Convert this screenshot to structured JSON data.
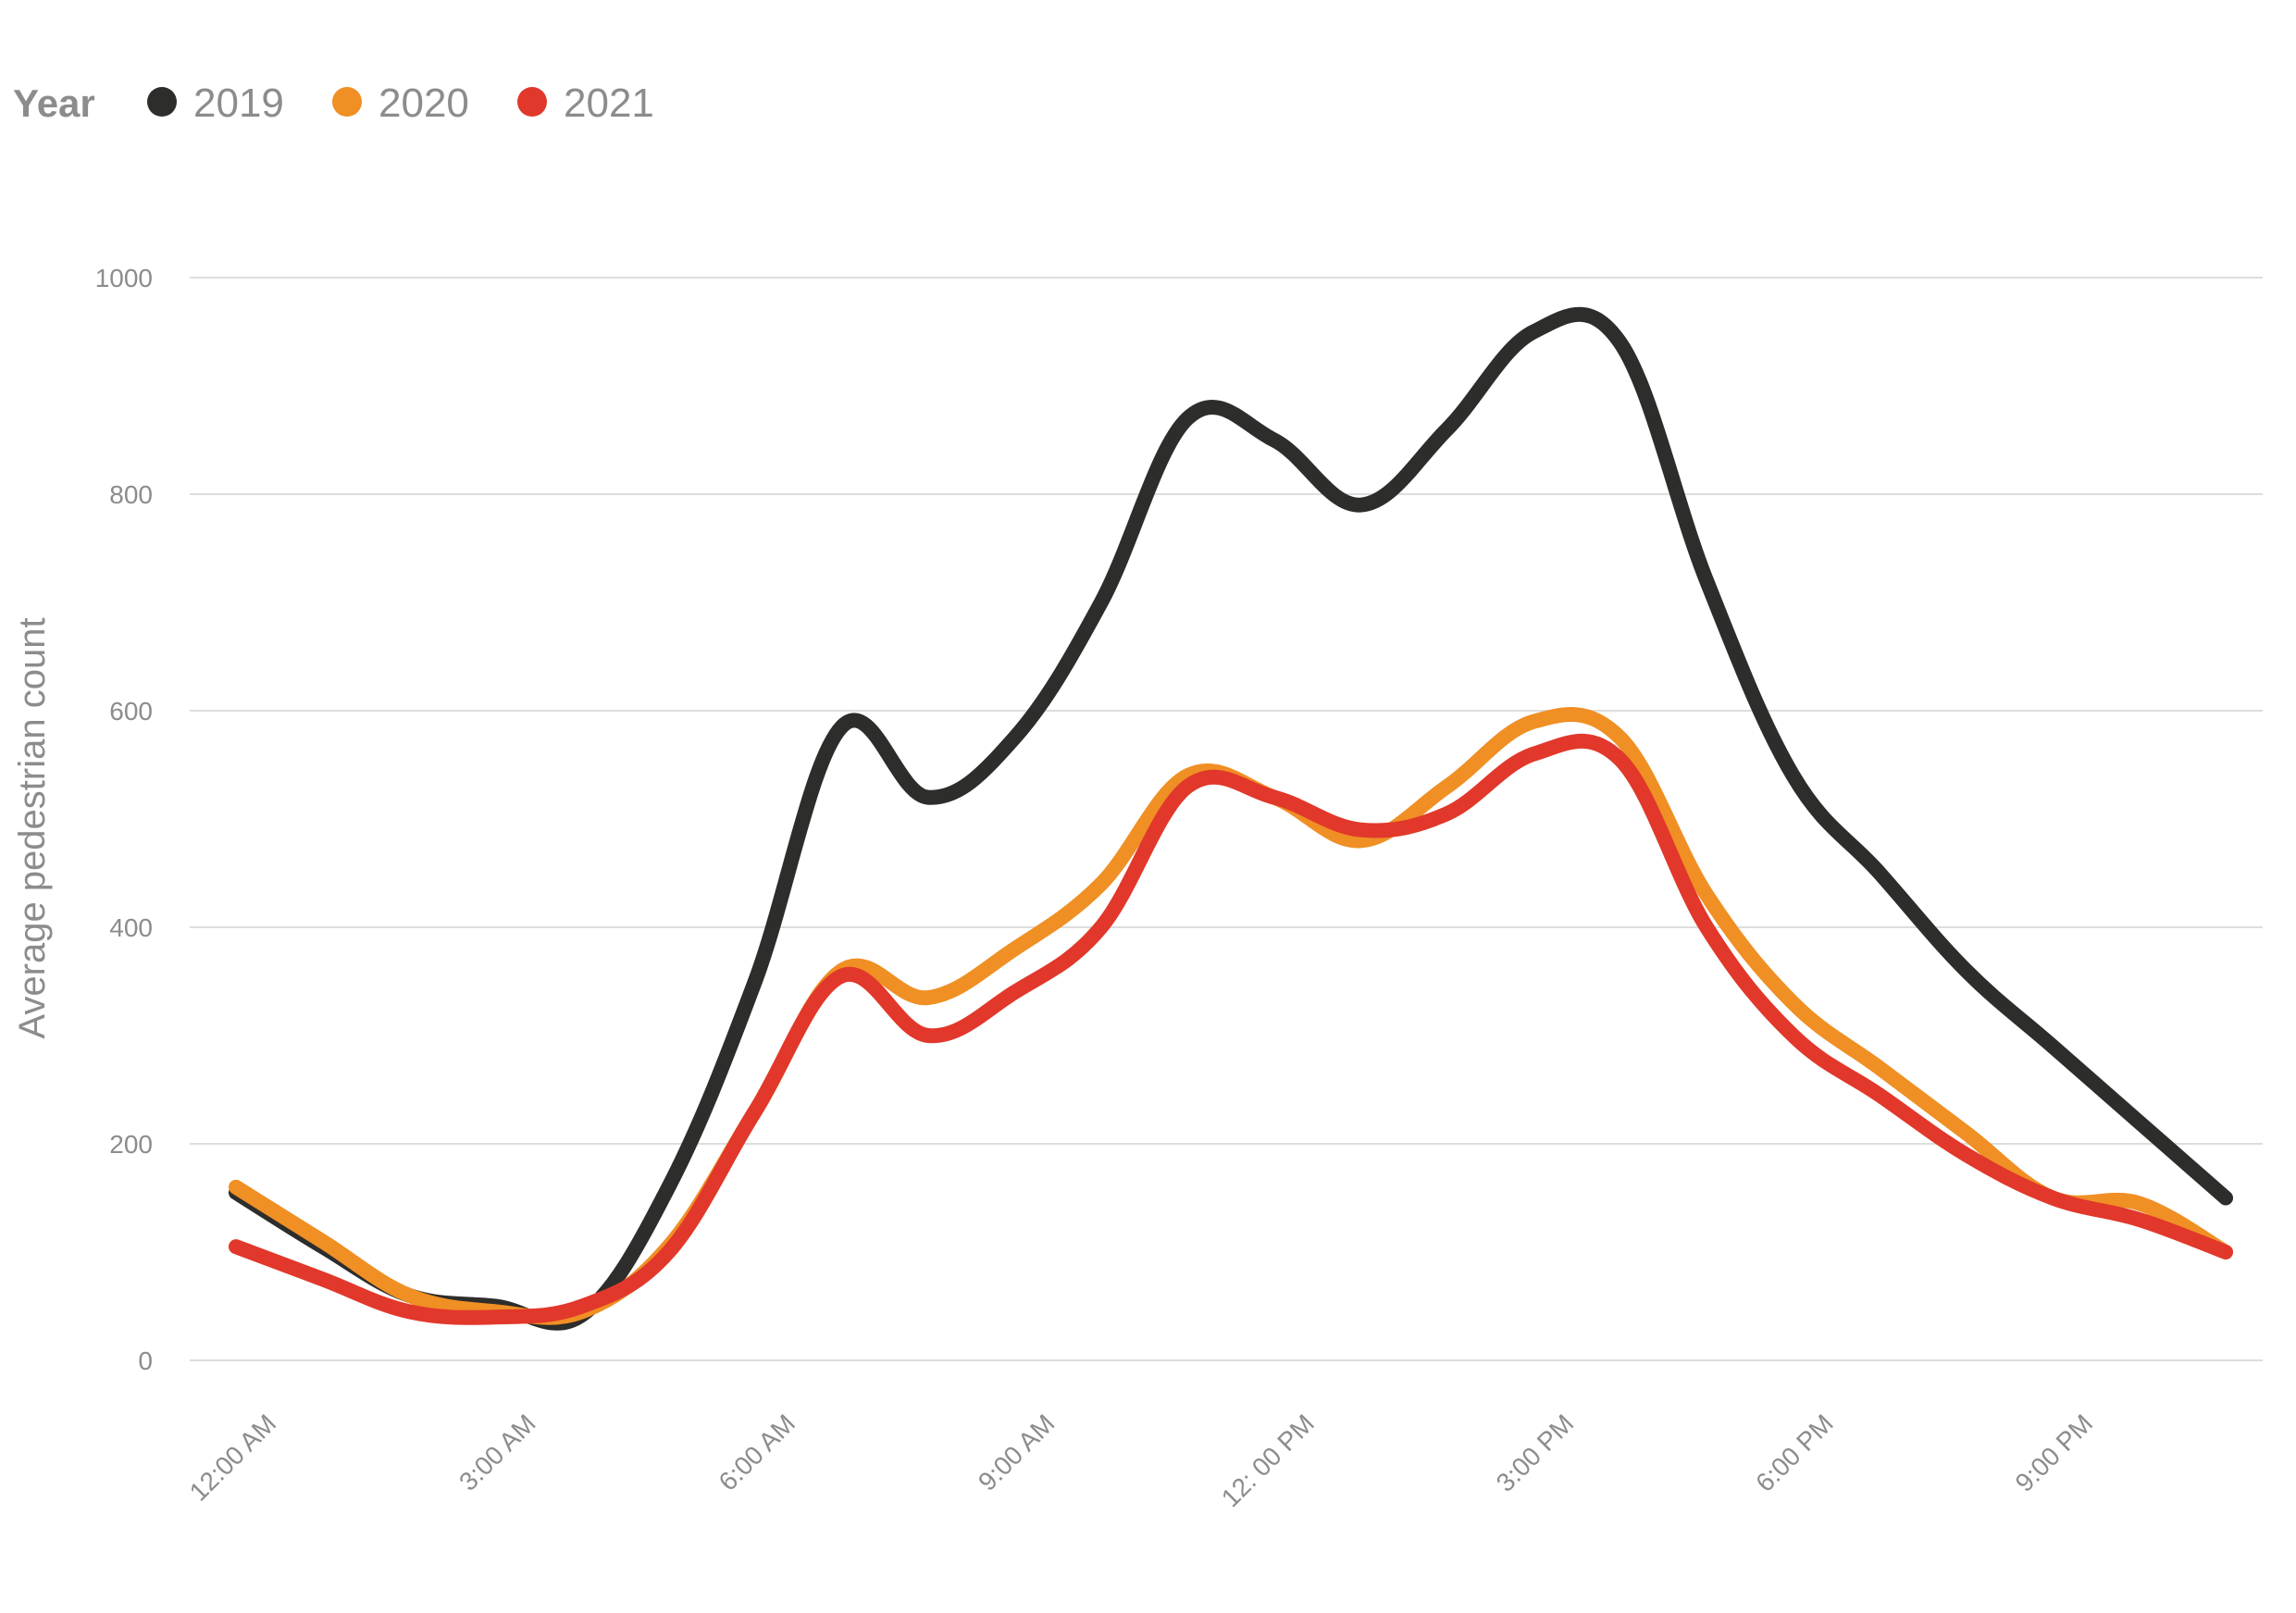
{
  "chart_data": {
    "type": "line",
    "legend": {
      "title": "Year",
      "placement": "top-left"
    },
    "xlabel": "",
    "ylabel": "Average pedestrian count",
    "ylim": [
      0,
      1000
    ],
    "yticks": [
      0,
      200,
      400,
      600,
      800,
      1000
    ],
    "grid": true,
    "x": [
      0,
      1,
      2,
      3,
      4,
      5,
      6,
      7,
      8,
      9,
      10,
      11,
      12,
      13,
      14,
      15,
      16,
      17,
      18,
      19,
      20,
      21,
      22,
      23
    ],
    "x_tick_labels": [
      {
        "x": 0,
        "label": "12:00 AM"
      },
      {
        "x": 3,
        "label": "3:00 AM"
      },
      {
        "x": 6,
        "label": "6:00 AM"
      },
      {
        "x": 9,
        "label": "9:00 AM"
      },
      {
        "x": 12,
        "label": "12: 00 PM"
      },
      {
        "x": 15,
        "label": "3:00 PM"
      },
      {
        "x": 18,
        "label": "6:00 PM"
      },
      {
        "x": 21,
        "label": "9:00 PM"
      }
    ],
    "series": [
      {
        "name": "2019",
        "color": "#2d2d2b",
        "values": [
          155,
          105,
          60,
          50,
          42,
          160,
          350,
          585,
          520,
          575,
          700,
          870,
          850,
          790,
          860,
          950,
          940,
          720,
          540,
          450,
          360,
          290,
          220,
          150
        ]
      },
      {
        "name": "2020",
        "color": "#f08f24",
        "values": [
          160,
          110,
          60,
          45,
          45,
          105,
          230,
          360,
          335,
          380,
          440,
          540,
          520,
          480,
          530,
          590,
          575,
          430,
          330,
          270,
          210,
          150,
          145,
          100
        ]
      },
      {
        "name": "2021",
        "color": "#e1382b",
        "values": [
          105,
          75,
          45,
          40,
          50,
          100,
          230,
          355,
          300,
          340,
          400,
          530,
          520,
          490,
          505,
          560,
          555,
          400,
          300,
          245,
          190,
          150,
          130,
          100
        ]
      }
    ]
  }
}
